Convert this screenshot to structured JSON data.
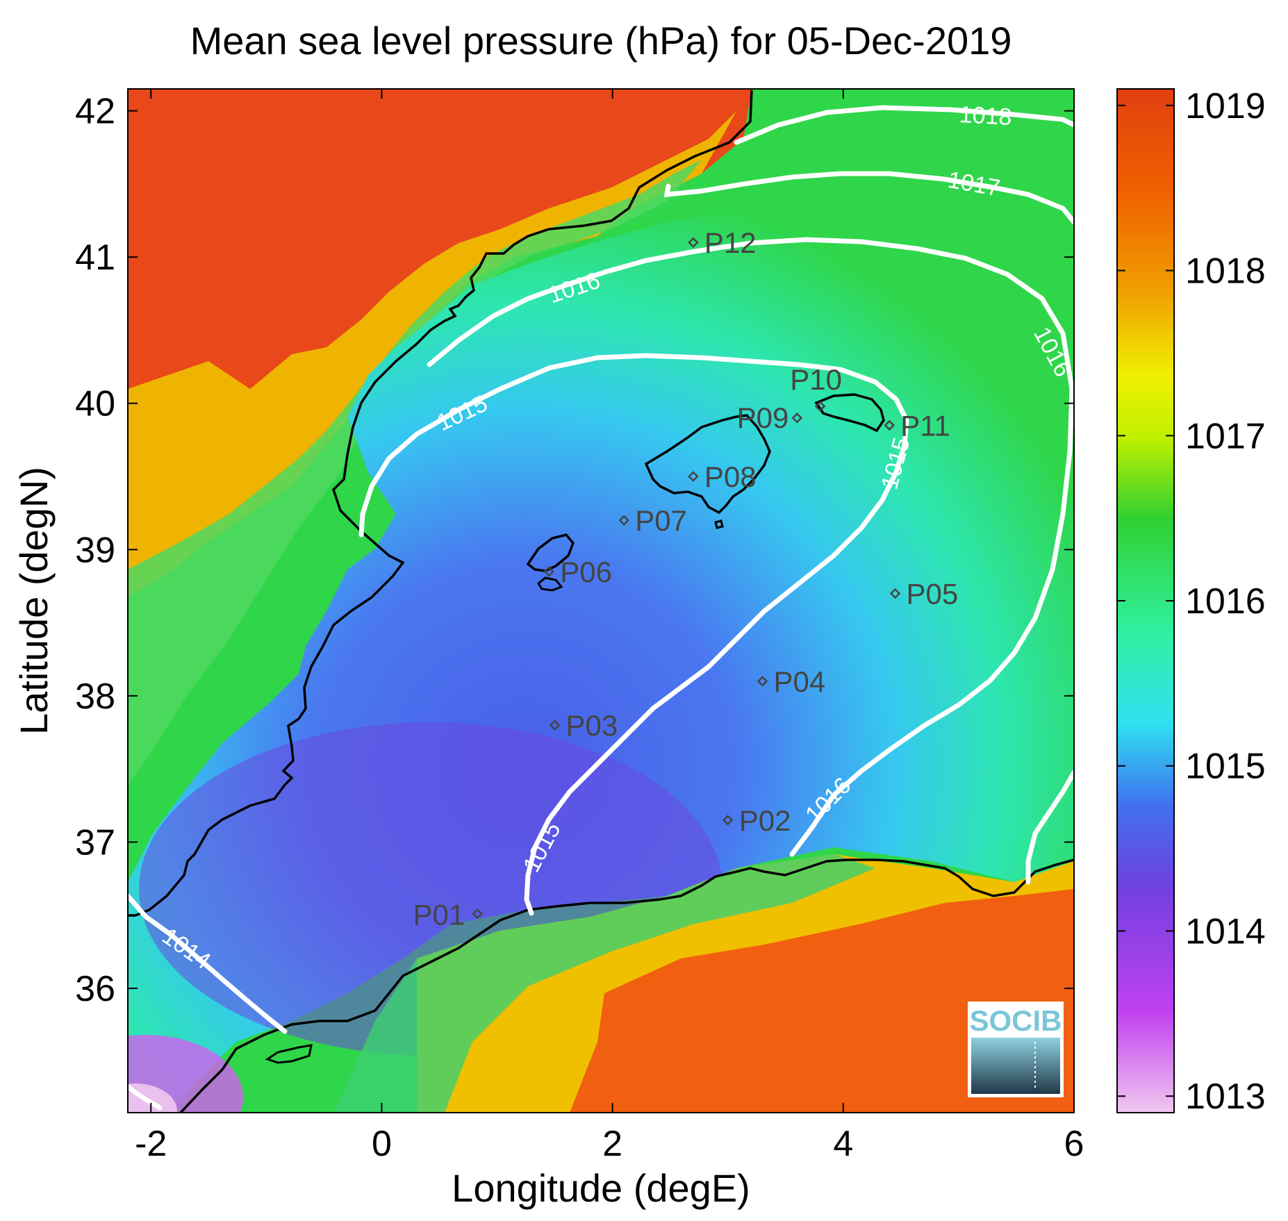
{
  "title": "Mean sea level pressure (hPa) for 05-Dec-2019",
  "xlabel": "Longitude (degE)",
  "ylabel": "Latitude (degN)",
  "x_ticks": [
    "-2",
    "0",
    "2",
    "4",
    "6"
  ],
  "y_ticks": [
    "36",
    "37",
    "38",
    "39",
    "40",
    "41",
    "42"
  ],
  "colorbar_ticks": [
    "1013",
    "1014",
    "1015",
    "1016",
    "1017",
    "1018",
    "1019"
  ],
  "logo": {
    "text": "SOCIB"
  },
  "chart_data": {
    "type": "heatmap",
    "title": "Mean sea level pressure (hPa) for 05-Dec-2019",
    "xlabel": "Longitude (degE)",
    "ylabel": "Latitude (degN)",
    "xlim": [
      -2.2,
      6.0
    ],
    "ylim": [
      35.15,
      42.15
    ],
    "colorbar": {
      "range": [
        1012.9,
        1019.1
      ],
      "ticks": [
        1013,
        1014,
        1015,
        1016,
        1017,
        1018,
        1019
      ]
    },
    "colormap": [
      "#f0c8f0",
      "#c040f0",
      "#7040e0",
      "#4070f0",
      "#30e0f0",
      "#30f0a0",
      "#30d030",
      "#c0f000",
      "#f0f000",
      "#f0a000",
      "#f06000",
      "#e04010"
    ],
    "contour_levels": [
      {
        "level": "1014",
        "label": "1014"
      },
      {
        "level": "1015",
        "label": "1015"
      },
      {
        "level": "1016",
        "label": "1016"
      },
      {
        "level": "1017",
        "label": "1017"
      },
      {
        "level": "1018",
        "label": "1018"
      }
    ],
    "stations": [
      {
        "name": "P01",
        "lon": 0.83,
        "lat": 36.51
      },
      {
        "name": "P02",
        "lon": 3.0,
        "lat": 37.15
      },
      {
        "name": "P03",
        "lon": 1.5,
        "lat": 37.8
      },
      {
        "name": "P04",
        "lon": 3.3,
        "lat": 38.1
      },
      {
        "name": "P05",
        "lon": 4.45,
        "lat": 38.7
      },
      {
        "name": "P06",
        "lon": 1.45,
        "lat": 38.85
      },
      {
        "name": "P07",
        "lon": 2.1,
        "lat": 39.2
      },
      {
        "name": "P08",
        "lon": 2.7,
        "lat": 39.5
      },
      {
        "name": "P09",
        "lon": 3.6,
        "lat": 39.9
      },
      {
        "name": "P10",
        "lon": 3.8,
        "lat": 39.98
      },
      {
        "name": "P11",
        "lon": 4.4,
        "lat": 39.85
      },
      {
        "name": "P12",
        "lon": 2.7,
        "lat": 41.1
      }
    ]
  }
}
